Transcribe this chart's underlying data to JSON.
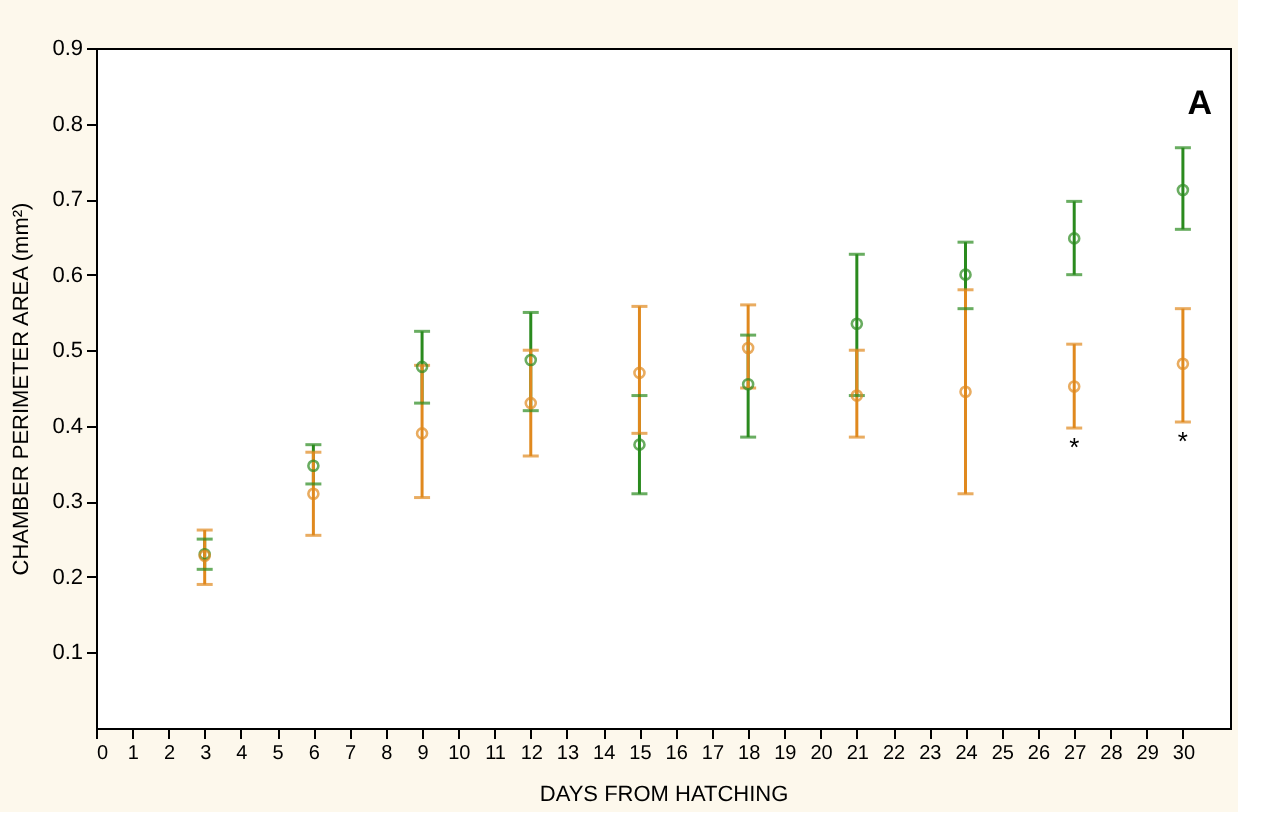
{
  "chart_data": {
    "type": "scatter",
    "xlabel": "DAYS FROM HATCHING",
    "ylabel": "CHAMBER PERIMETER AREA (mm²)",
    "x": [
      3,
      6,
      9,
      12,
      15,
      18,
      21,
      24,
      27,
      30
    ],
    "series": [
      {
        "color": "#2a8a1e",
        "values": [
          0.23,
          0.347,
          0.478,
          0.487,
          0.375,
          0.455,
          0.535,
          0.6,
          0.648,
          0.712
        ],
        "errors": [
          [
            0.21,
            0.25
          ],
          [
            0.323,
            0.375
          ],
          [
            0.43,
            0.525
          ],
          [
            0.42,
            0.55
          ],
          [
            0.31,
            0.44
          ],
          [
            0.385,
            0.52
          ],
          [
            0.44,
            0.627
          ],
          [
            0.555,
            0.643
          ],
          [
            0.6,
            0.697
          ],
          [
            0.66,
            0.768
          ]
        ]
      },
      {
        "color": "#e0891e",
        "values": [
          0.228,
          0.31,
          0.39,
          0.43,
          0.47,
          0.503,
          0.44,
          0.445,
          0.452,
          0.482
        ],
        "errors": [
          [
            0.19,
            0.262
          ],
          [
            0.255,
            0.365
          ],
          [
            0.305,
            0.48
          ],
          [
            0.36,
            0.5
          ],
          [
            0.39,
            0.558
          ],
          [
            0.45,
            0.56
          ],
          [
            0.385,
            0.5
          ],
          [
            0.31,
            0.58
          ],
          [
            0.397,
            0.508
          ],
          [
            0.405,
            0.555
          ]
        ]
      }
    ],
    "annotations": [
      "A",
      {
        "text": "*",
        "x": 27,
        "y": 0.397
      },
      {
        "text": "*",
        "x": 30,
        "y": 0.405
      }
    ],
    "xlim": [
      0,
      31.3
    ],
    "xticks": [
      0,
      1,
      2,
      3,
      4,
      5,
      6,
      7,
      8,
      9,
      10,
      11,
      12,
      13,
      14,
      15,
      16,
      17,
      18,
      19,
      20,
      21,
      22,
      23,
      24,
      25,
      26,
      27,
      28,
      29,
      30
    ],
    "ylim": [
      0,
      0.9
    ],
    "yticks": [
      0.1,
      0.2,
      0.3,
      0.4,
      0.5,
      0.6,
      0.7,
      0.8,
      0.9
    ],
    "grid": false,
    "marker": "circle"
  }
}
